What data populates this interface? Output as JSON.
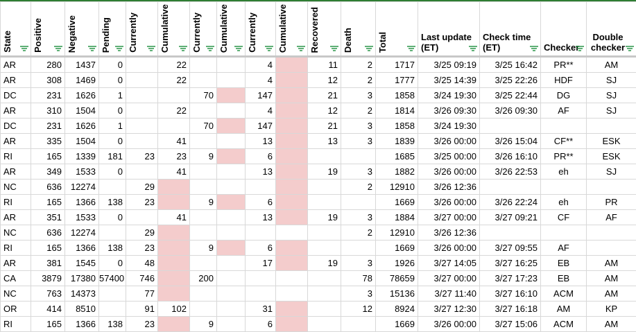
{
  "columns": [
    {
      "label": "State"
    },
    {
      "label": "Positive"
    },
    {
      "label": "Negative"
    },
    {
      "label": "Pending"
    },
    {
      "label": "Currently"
    },
    {
      "label": "Cumulative"
    },
    {
      "label": "Currently"
    },
    {
      "label": "Cumulative"
    },
    {
      "label": "Currently"
    },
    {
      "label": "Cumulative"
    },
    {
      "label": "Recovered"
    },
    {
      "label": "Death"
    },
    {
      "label": "Total"
    },
    {
      "label": "Last update (ET)"
    },
    {
      "label": "Check time (ET)"
    },
    {
      "label": "Checker"
    },
    {
      "label": "Double checker"
    }
  ],
  "filter_icon": "filter-icon",
  "highlight_color": "#f4cccc",
  "rows": [
    [
      "AR",
      "280",
      "1437",
      "0",
      "",
      "22",
      "",
      "",
      "4",
      "",
      "11",
      "2",
      "1717",
      "3/25 09:19",
      "3/25 16:42",
      "PR**",
      "AM"
    ],
    [
      "AR",
      "308",
      "1469",
      "0",
      "",
      "22",
      "",
      "",
      "4",
      "",
      "12",
      "2",
      "1777",
      "3/25 14:39",
      "3/25 22:26",
      "HDF",
      "SJ"
    ],
    [
      "DC",
      "231",
      "1626",
      "1",
      "",
      "",
      "70",
      "",
      "147",
      "",
      "21",
      "3",
      "1858",
      "3/24 19:30",
      "3/25 22:44",
      "DG",
      "SJ"
    ],
    [
      "AR",
      "310",
      "1504",
      "0",
      "",
      "22",
      "",
      "",
      "4",
      "",
      "12",
      "2",
      "1814",
      "3/26 09:30",
      "3/26 09:30",
      "AF",
      "SJ"
    ],
    [
      "DC",
      "231",
      "1626",
      "1",
      "",
      "",
      "70",
      "",
      "147",
      "",
      "21",
      "3",
      "1858",
      "3/24 19:30",
      "",
      "",
      ""
    ],
    [
      "AR",
      "335",
      "1504",
      "0",
      "",
      "41",
      "",
      "",
      "13",
      "",
      "13",
      "3",
      "1839",
      "3/26 00:00",
      "3/26 15:04",
      "CF**",
      "ESK"
    ],
    [
      "RI",
      "165",
      "1339",
      "181",
      "23",
      "23",
      "9",
      "",
      "6",
      "",
      "",
      "",
      "1685",
      "3/25 00:00",
      "3/26 16:10",
      "PR**",
      "ESK"
    ],
    [
      "AR",
      "349",
      "1533",
      "0",
      "",
      "41",
      "",
      "",
      "13",
      "",
      "19",
      "3",
      "1882",
      "3/26 00:00",
      "3/26 22:53",
      "eh",
      "SJ"
    ],
    [
      "NC",
      "636",
      "12274",
      "",
      "29",
      "",
      "",
      "",
      "",
      "",
      "",
      "2",
      "12910",
      "3/26 12:36",
      "",
      "",
      ""
    ],
    [
      "RI",
      "165",
      "1366",
      "138",
      "23",
      "",
      "9",
      "",
      "6",
      "",
      "",
      "",
      "1669",
      "3/26 00:00",
      "3/26 22:24",
      "eh",
      "PR"
    ],
    [
      "AR",
      "351",
      "1533",
      "0",
      "",
      "41",
      "",
      "",
      "13",
      "",
      "19",
      "3",
      "1884",
      "3/27 00:00",
      "3/27 09:21",
      "CF",
      "AF"
    ],
    [
      "NC",
      "636",
      "12274",
      "",
      "29",
      "",
      "",
      "",
      "",
      "",
      "",
      "2",
      "12910",
      "3/26 12:36",
      "",
      "",
      ""
    ],
    [
      "RI",
      "165",
      "1366",
      "138",
      "23",
      "",
      "9",
      "",
      "6",
      "",
      "",
      "",
      "1669",
      "3/26 00:00",
      "3/27 09:55",
      "AF",
      ""
    ],
    [
      "AR",
      "381",
      "1545",
      "0",
      "48",
      "",
      "",
      "",
      "17",
      "",
      "19",
      "3",
      "1926",
      "3/27 14:05",
      "3/27 16:25",
      "EB",
      "AM"
    ],
    [
      "CA",
      "3879",
      "17380",
      "57400",
      "746",
      "",
      "200",
      "",
      "",
      "",
      "",
      "78",
      "78659",
      "3/27 00:00",
      "3/27 17:23",
      "EB",
      "AM"
    ],
    [
      "NC",
      "763",
      "14373",
      "",
      "77",
      "",
      "",
      "",
      "",
      "",
      "",
      "3",
      "15136",
      "3/27 11:40",
      "3/27 16:10",
      "ACM",
      "AM"
    ],
    [
      "OR",
      "414",
      "8510",
      "",
      "91",
      "102",
      "",
      "",
      "31",
      "",
      "",
      "12",
      "8924",
      "3/27 12:30",
      "3/27 16:18",
      "AM",
      "KP"
    ],
    [
      "RI",
      "165",
      "1366",
      "138",
      "23",
      "",
      "9",
      "",
      "6",
      "",
      "",
      "",
      "1669",
      "3/26 00:00",
      "3/27 15:06",
      "ACM",
      "AM"
    ]
  ],
  "pink_cells": [
    [
      0,
      9
    ],
    [
      1,
      9
    ],
    [
      2,
      7
    ],
    [
      2,
      9
    ],
    [
      3,
      9
    ],
    [
      4,
      7
    ],
    [
      4,
      9
    ],
    [
      5,
      9
    ],
    [
      6,
      7
    ],
    [
      6,
      9
    ],
    [
      7,
      9
    ],
    [
      8,
      5
    ],
    [
      8,
      9
    ],
    [
      9,
      5
    ],
    [
      9,
      7
    ],
    [
      9,
      9
    ],
    [
      10,
      9
    ],
    [
      11,
      5
    ],
    [
      12,
      5
    ],
    [
      12,
      7
    ],
    [
      12,
      9
    ],
    [
      13,
      5
    ],
    [
      13,
      9
    ],
    [
      14,
      5
    ],
    [
      15,
      5
    ],
    [
      16,
      9
    ],
    [
      17,
      5
    ],
    [
      17,
      9
    ]
  ]
}
